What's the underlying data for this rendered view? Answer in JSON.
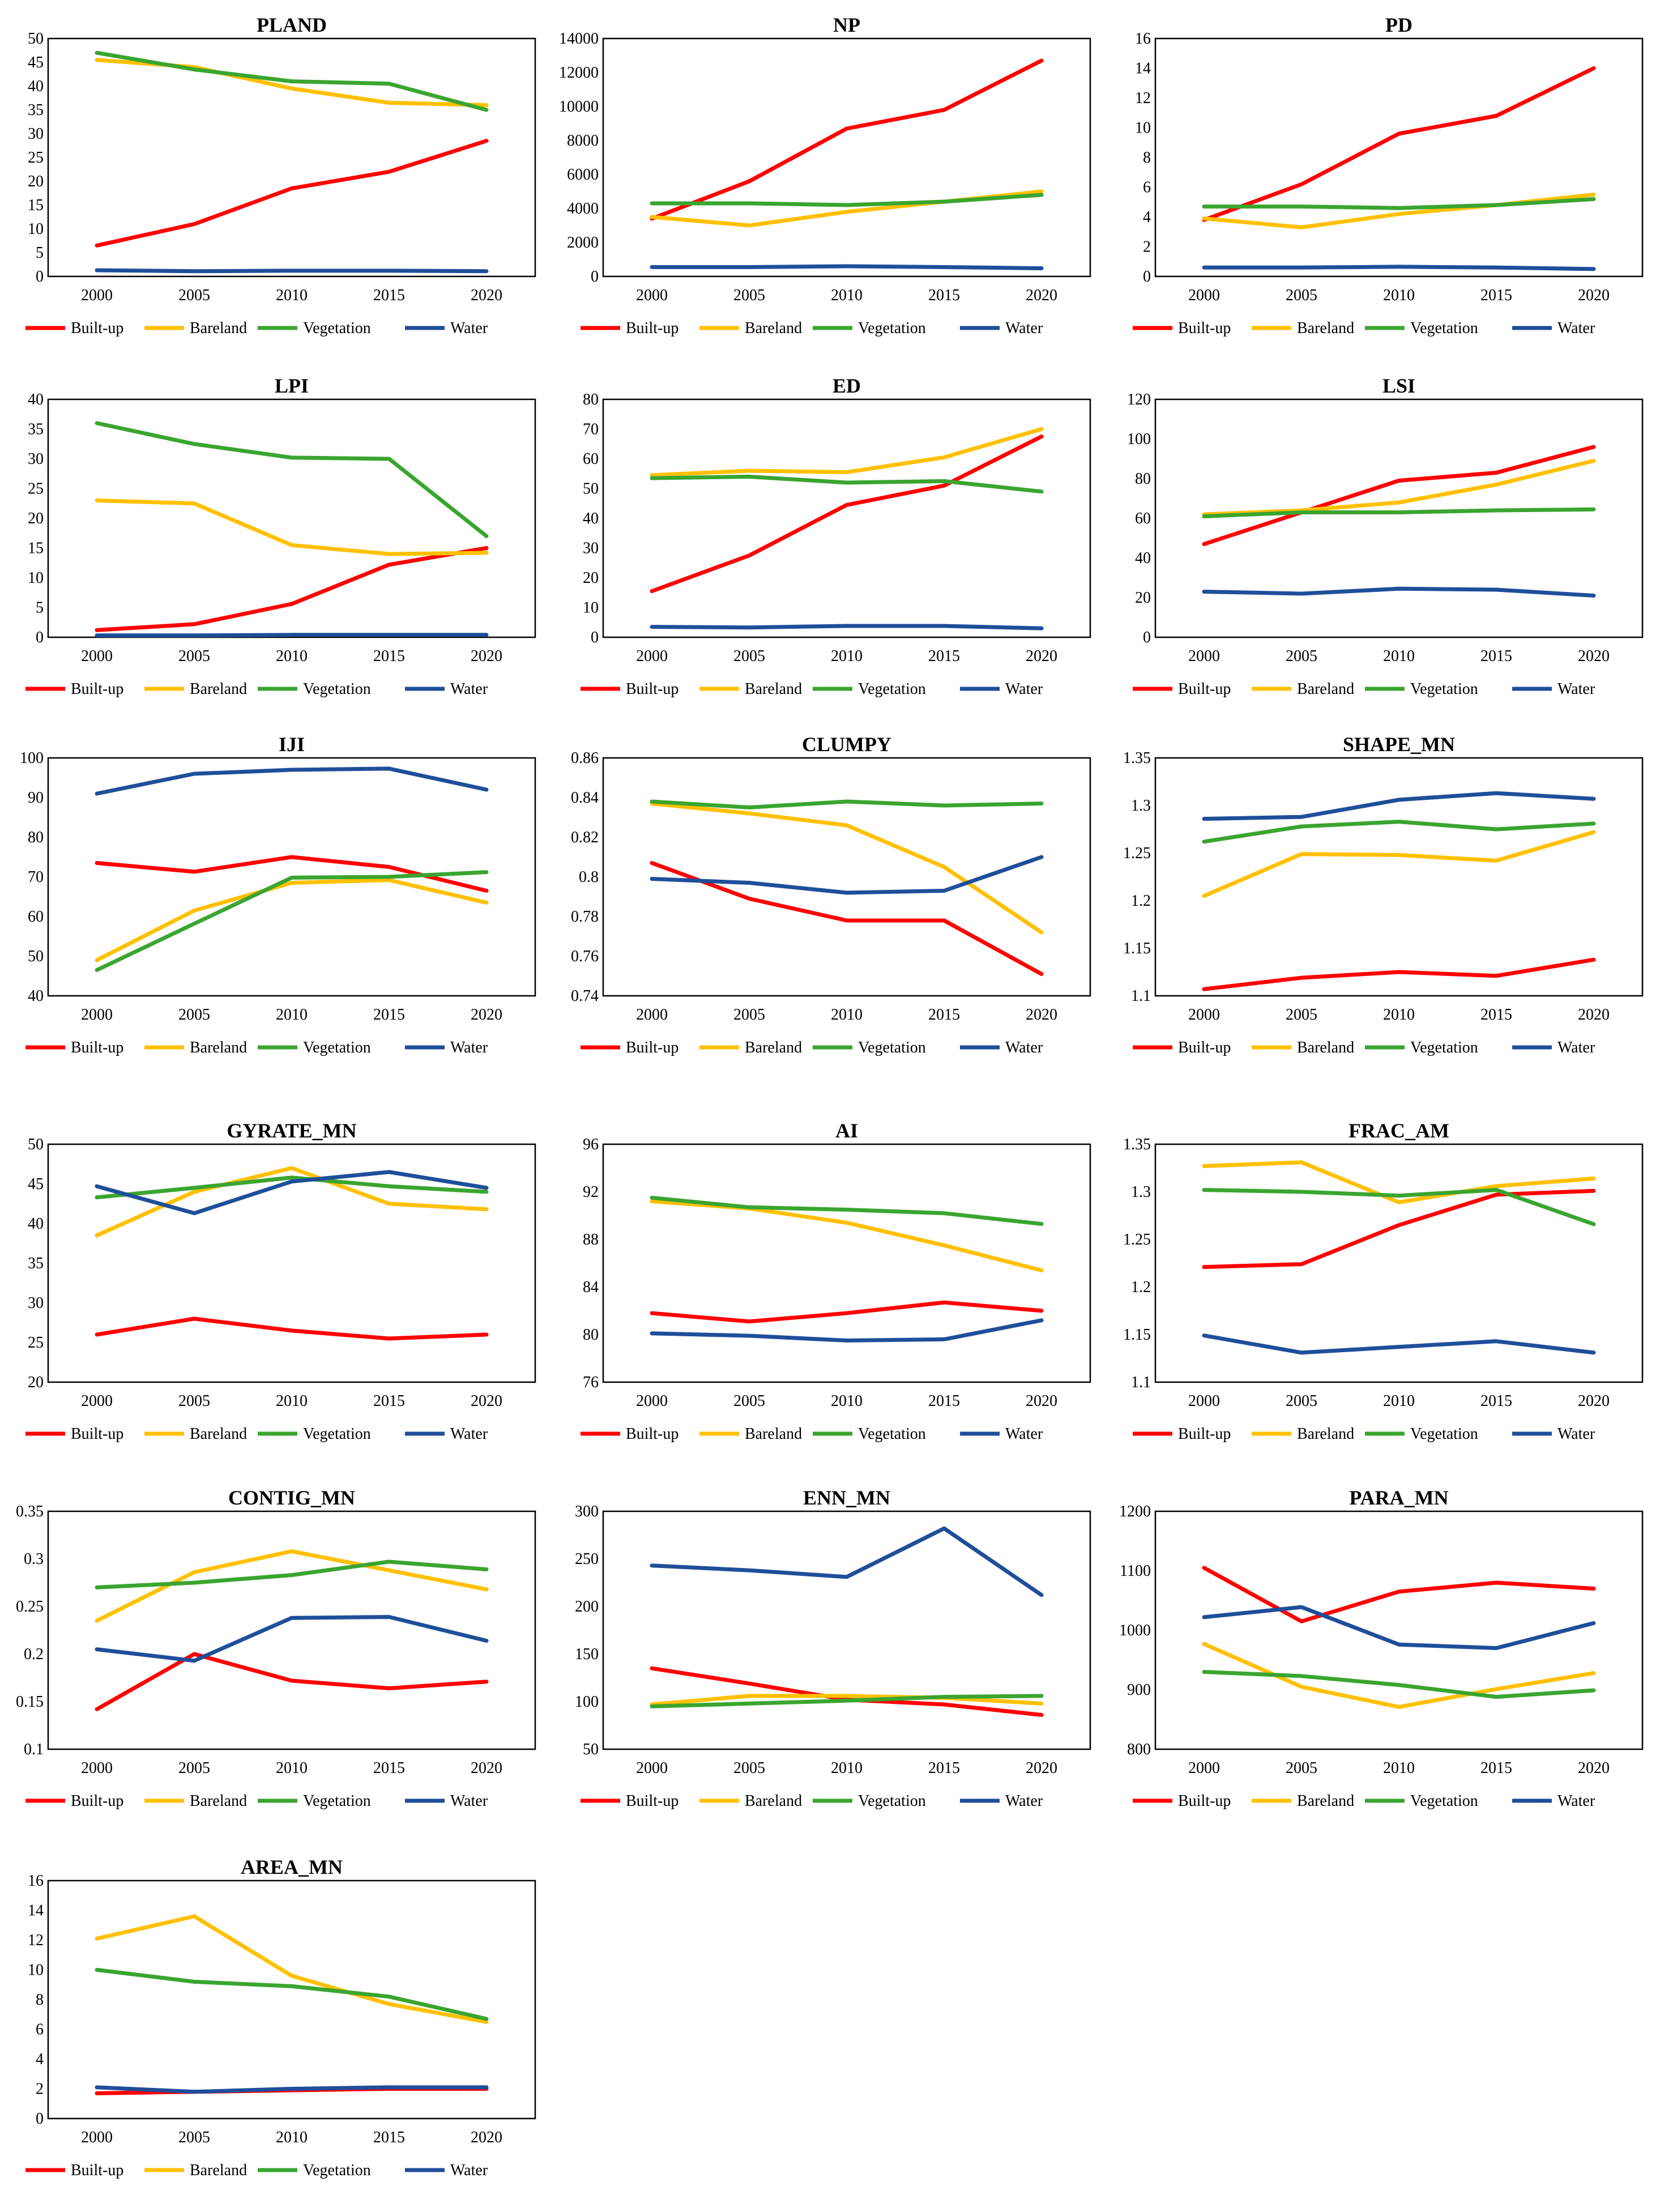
{
  "series_meta": [
    {
      "name": "Built-up",
      "color": "#ff0000"
    },
    {
      "name": "Bareland",
      "color": "#ffc000"
    },
    {
      "name": "Vegetation",
      "color": "#3aa52f"
    },
    {
      "name": "Water",
      "color": "#1f4e9a"
    }
  ],
  "chart_data": [
    {
      "type": "line",
      "title": "PLAND",
      "categories": [
        "2000",
        "2005",
        "2010",
        "2015",
        "2020"
      ],
      "ylim": [
        0,
        50
      ],
      "yticks": [
        0,
        5,
        10,
        15,
        20,
        25,
        30,
        35,
        40,
        45,
        50
      ],
      "series": [
        {
          "name": "Built-up",
          "values": [
            6.5,
            11,
            18.5,
            22,
            28.5
          ]
        },
        {
          "name": "Bareland",
          "values": [
            45.5,
            44,
            39.5,
            36.5,
            36
          ]
        },
        {
          "name": "Vegetation",
          "values": [
            47,
            43.5,
            41,
            40.5,
            35
          ]
        },
        {
          "name": "Water",
          "values": [
            1.3,
            1.1,
            1.2,
            1.2,
            1.1
          ]
        }
      ]
    },
    {
      "type": "line",
      "title": "NP",
      "categories": [
        "2000",
        "2005",
        "2010",
        "2015",
        "2020"
      ],
      "ylim": [
        0,
        14000
      ],
      "yticks": [
        0,
        2000,
        4000,
        6000,
        8000,
        10000,
        12000,
        14000
      ],
      "series": [
        {
          "name": "Built-up",
          "values": [
            3400,
            5600,
            8700,
            9800,
            12700
          ]
        },
        {
          "name": "Bareland",
          "values": [
            3500,
            3000,
            3800,
            4400,
            5000
          ]
        },
        {
          "name": "Vegetation",
          "values": [
            4300,
            4300,
            4200,
            4400,
            4800
          ]
        },
        {
          "name": "Water",
          "values": [
            550,
            550,
            600,
            550,
            480
          ]
        }
      ]
    },
    {
      "type": "line",
      "title": "PD",
      "categories": [
        "2000",
        "2005",
        "2010",
        "2015",
        "2020"
      ],
      "ylim": [
        0,
        16
      ],
      "yticks": [
        0,
        2,
        4,
        6,
        8,
        10,
        12,
        14,
        16
      ],
      "series": [
        {
          "name": "Built-up",
          "values": [
            3.8,
            6.2,
            9.6,
            10.8,
            14
          ]
        },
        {
          "name": "Bareland",
          "values": [
            3.9,
            3.3,
            4.2,
            4.8,
            5.5
          ]
        },
        {
          "name": "Vegetation",
          "values": [
            4.7,
            4.7,
            4.6,
            4.8,
            5.2
          ]
        },
        {
          "name": "Water",
          "values": [
            0.6,
            0.6,
            0.65,
            0.6,
            0.5
          ]
        }
      ]
    },
    {
      "type": "line",
      "title": "LPI",
      "categories": [
        "2000",
        "2005",
        "2010",
        "2015",
        "2020"
      ],
      "ylim": [
        0,
        40
      ],
      "yticks": [
        0,
        5,
        10,
        15,
        20,
        25,
        30,
        35,
        40
      ],
      "series": [
        {
          "name": "Built-up",
          "values": [
            1.2,
            2.2,
            5.6,
            12.2,
            15
          ]
        },
        {
          "name": "Bareland",
          "values": [
            23,
            22.5,
            15.5,
            14,
            14.2
          ]
        },
        {
          "name": "Vegetation",
          "values": [
            36,
            32.5,
            30.2,
            30,
            17
          ]
        },
        {
          "name": "Water",
          "values": [
            0.3,
            0.3,
            0.4,
            0.4,
            0.4
          ]
        }
      ]
    },
    {
      "type": "line",
      "title": "ED",
      "categories": [
        "2000",
        "2005",
        "2010",
        "2015",
        "2020"
      ],
      "ylim": [
        0,
        80
      ],
      "yticks": [
        0,
        10,
        20,
        30,
        40,
        50,
        60,
        70,
        80
      ],
      "series": [
        {
          "name": "Built-up",
          "values": [
            15.5,
            27.5,
            44.5,
            51,
            67.5
          ]
        },
        {
          "name": "Bareland",
          "values": [
            54.5,
            56,
            55.5,
            60.5,
            70
          ]
        },
        {
          "name": "Vegetation",
          "values": [
            53.5,
            54,
            52,
            52.5,
            49
          ]
        },
        {
          "name": "Water",
          "values": [
            3.5,
            3.3,
            3.8,
            3.8,
            3
          ]
        }
      ]
    },
    {
      "type": "line",
      "title": "LSI",
      "categories": [
        "2000",
        "2005",
        "2010",
        "2015",
        "2020"
      ],
      "ylim": [
        0,
        120
      ],
      "yticks": [
        0,
        20,
        40,
        60,
        80,
        100,
        120
      ],
      "series": [
        {
          "name": "Built-up",
          "values": [
            47,
            63,
            79,
            83,
            96
          ]
        },
        {
          "name": "Bareland",
          "values": [
            62,
            64,
            68,
            77,
            89
          ]
        },
        {
          "name": "Vegetation",
          "values": [
            61,
            63,
            63,
            64,
            64.5
          ]
        },
        {
          "name": "Water",
          "values": [
            23,
            22,
            24.5,
            24,
            21
          ]
        }
      ]
    },
    {
      "type": "line",
      "title": "IJI",
      "categories": [
        "2000",
        "2005",
        "2010",
        "2015",
        "2020"
      ],
      "ylim": [
        40,
        100
      ],
      "yticks": [
        40,
        50,
        60,
        70,
        80,
        90,
        100
      ],
      "series": [
        {
          "name": "Built-up",
          "values": [
            73.5,
            71.3,
            75,
            72.5,
            66.5
          ]
        },
        {
          "name": "Bareland",
          "values": [
            49,
            61.5,
            68.5,
            69.2,
            63.5
          ]
        },
        {
          "name": "Vegetation",
          "values": [
            46.5,
            58.2,
            69.8,
            70,
            71.2
          ]
        },
        {
          "name": "Water",
          "values": [
            91,
            96,
            97,
            97.3,
            92
          ]
        }
      ]
    },
    {
      "type": "line",
      "title": "CLUMPY",
      "categories": [
        "2000",
        "2005",
        "2010",
        "2015",
        "2020"
      ],
      "ylim": [
        0.74,
        0.86
      ],
      "yticks": [
        0.74,
        0.76,
        0.78,
        0.8,
        0.82,
        0.84,
        0.86
      ],
      "series": [
        {
          "name": "Built-up",
          "values": [
            0.807,
            0.789,
            0.778,
            0.778,
            0.751
          ]
        },
        {
          "name": "Bareland",
          "values": [
            0.837,
            0.832,
            0.826,
            0.805,
            0.772
          ]
        },
        {
          "name": "Vegetation",
          "values": [
            0.838,
            0.835,
            0.838,
            0.836,
            0.837
          ]
        },
        {
          "name": "Water",
          "values": [
            0.799,
            0.797,
            0.792,
            0.793,
            0.81
          ]
        }
      ]
    },
    {
      "type": "line",
      "title": "SHAPE_MN",
      "categories": [
        "2000",
        "2005",
        "2010",
        "2015",
        "2020"
      ],
      "ylim": [
        1.1,
        1.35
      ],
      "yticks": [
        1.1,
        1.15,
        1.2,
        1.25,
        1.3,
        1.35
      ],
      "series": [
        {
          "name": "Built-up",
          "values": [
            1.107,
            1.119,
            1.125,
            1.121,
            1.138
          ]
        },
        {
          "name": "Bareland",
          "values": [
            1.205,
            1.249,
            1.248,
            1.242,
            1.272
          ]
        },
        {
          "name": "Vegetation",
          "values": [
            1.262,
            1.278,
            1.283,
            1.275,
            1.281
          ]
        },
        {
          "name": "Water",
          "values": [
            1.286,
            1.288,
            1.306,
            1.313,
            1.307
          ]
        }
      ]
    },
    {
      "type": "line",
      "title": "GYRATE_MN",
      "categories": [
        "2000",
        "2005",
        "2010",
        "2015",
        "2020"
      ],
      "ylim": [
        20,
        50
      ],
      "yticks": [
        20,
        25,
        30,
        35,
        40,
        45,
        50
      ],
      "series": [
        {
          "name": "Built-up",
          "values": [
            26,
            28,
            26.5,
            25.5,
            26
          ]
        },
        {
          "name": "Bareland",
          "values": [
            38.5,
            44,
            47,
            42.5,
            41.8
          ]
        },
        {
          "name": "Vegetation",
          "values": [
            43.3,
            44.5,
            45.8,
            44.7,
            44
          ]
        },
        {
          "name": "Water",
          "values": [
            44.7,
            41.3,
            45.3,
            46.5,
            44.5
          ]
        }
      ]
    },
    {
      "type": "line",
      "title": "AI",
      "categories": [
        "2000",
        "2005",
        "2010",
        "2015",
        "2020"
      ],
      "ylim": [
        76,
        96
      ],
      "yticks": [
        76,
        80,
        84,
        88,
        92,
        96
      ],
      "series": [
        {
          "name": "Built-up",
          "values": [
            81.8,
            81.1,
            81.8,
            82.7,
            82
          ]
        },
        {
          "name": "Bareland",
          "values": [
            91.2,
            90.6,
            89.4,
            87.5,
            85.4
          ]
        },
        {
          "name": "Vegetation",
          "values": [
            91.5,
            90.7,
            90.5,
            90.2,
            89.3
          ]
        },
        {
          "name": "Water",
          "values": [
            80.1,
            79.9,
            79.5,
            79.6,
            81.2
          ]
        }
      ]
    },
    {
      "type": "line",
      "title": "FRAC_AM",
      "categories": [
        "2000",
        "2005",
        "2010",
        "2015",
        "2020"
      ],
      "ylim": [
        1.1,
        1.35
      ],
      "yticks": [
        1.1,
        1.15,
        1.2,
        1.25,
        1.3,
        1.35
      ],
      "series": [
        {
          "name": "Built-up",
          "values": [
            1.221,
            1.224,
            1.265,
            1.297,
            1.301
          ]
        },
        {
          "name": "Bareland",
          "values": [
            1.327,
            1.331,
            1.289,
            1.306,
            1.314
          ]
        },
        {
          "name": "Vegetation",
          "values": [
            1.302,
            1.3,
            1.296,
            1.302,
            1.266
          ]
        },
        {
          "name": "Water",
          "values": [
            1.149,
            1.131,
            1.137,
            1.143,
            1.131
          ]
        }
      ]
    },
    {
      "type": "line",
      "title": "CONTIG_MN",
      "categories": [
        "2000",
        "2005",
        "2010",
        "2015",
        "2020"
      ],
      "ylim": [
        0.1,
        0.35
      ],
      "yticks": [
        0.1,
        0.15,
        0.2,
        0.25,
        0.3,
        0.35
      ],
      "series": [
        {
          "name": "Built-up",
          "values": [
            0.142,
            0.2,
            0.172,
            0.164,
            0.171
          ]
        },
        {
          "name": "Bareland",
          "values": [
            0.235,
            0.286,
            0.308,
            0.288,
            0.268
          ]
        },
        {
          "name": "Vegetation",
          "values": [
            0.27,
            0.275,
            0.283,
            0.297,
            0.289
          ]
        },
        {
          "name": "Water",
          "values": [
            0.205,
            0.193,
            0.238,
            0.239,
            0.214
          ]
        }
      ]
    },
    {
      "type": "line",
      "title": "ENN_MN",
      "categories": [
        "2000",
        "2005",
        "2010",
        "2015",
        "2020"
      ],
      "ylim": [
        50,
        300
      ],
      "yticks": [
        50,
        100,
        150,
        200,
        250,
        300
      ],
      "series": [
        {
          "name": "Built-up",
          "values": [
            135,
            119,
            102,
            97,
            86
          ]
        },
        {
          "name": "Bareland",
          "values": [
            97,
            106,
            106,
            104,
            98
          ]
        },
        {
          "name": "Vegetation",
          "values": [
            95,
            98,
            101,
            105,
            106
          ]
        },
        {
          "name": "Water",
          "values": [
            243,
            238,
            231,
            282,
            212
          ]
        }
      ]
    },
    {
      "type": "line",
      "title": "PARA_MN",
      "categories": [
        "2000",
        "2005",
        "2010",
        "2015",
        "2020"
      ],
      "ylim": [
        800,
        1200
      ],
      "yticks": [
        800,
        900,
        1000,
        1100,
        1200
      ],
      "series": [
        {
          "name": "Built-up",
          "values": [
            1105,
            1015,
            1065,
            1080,
            1070
          ]
        },
        {
          "name": "Bareland",
          "values": [
            977,
            905,
            871,
            901,
            928
          ]
        },
        {
          "name": "Vegetation",
          "values": [
            930,
            923,
            908,
            888,
            899
          ]
        },
        {
          "name": "Water",
          "values": [
            1022,
            1039,
            976,
            970,
            1012
          ]
        }
      ]
    },
    {
      "type": "line",
      "title": "AREA_MN",
      "categories": [
        "2000",
        "2005",
        "2010",
        "2015",
        "2020"
      ],
      "ylim": [
        0,
        16
      ],
      "yticks": [
        0,
        2,
        4,
        6,
        8,
        10,
        12,
        14,
        16
      ],
      "series": [
        {
          "name": "Built-up",
          "values": [
            1.7,
            1.8,
            1.9,
            2,
            2
          ]
        },
        {
          "name": "Bareland",
          "values": [
            12.1,
            13.6,
            9.6,
            7.7,
            6.5
          ]
        },
        {
          "name": "Vegetation",
          "values": [
            10,
            9.2,
            8.9,
            8.2,
            6.7
          ]
        },
        {
          "name": "Water",
          "values": [
            2.1,
            1.8,
            2,
            2.1,
            2.1
          ]
        }
      ]
    }
  ]
}
